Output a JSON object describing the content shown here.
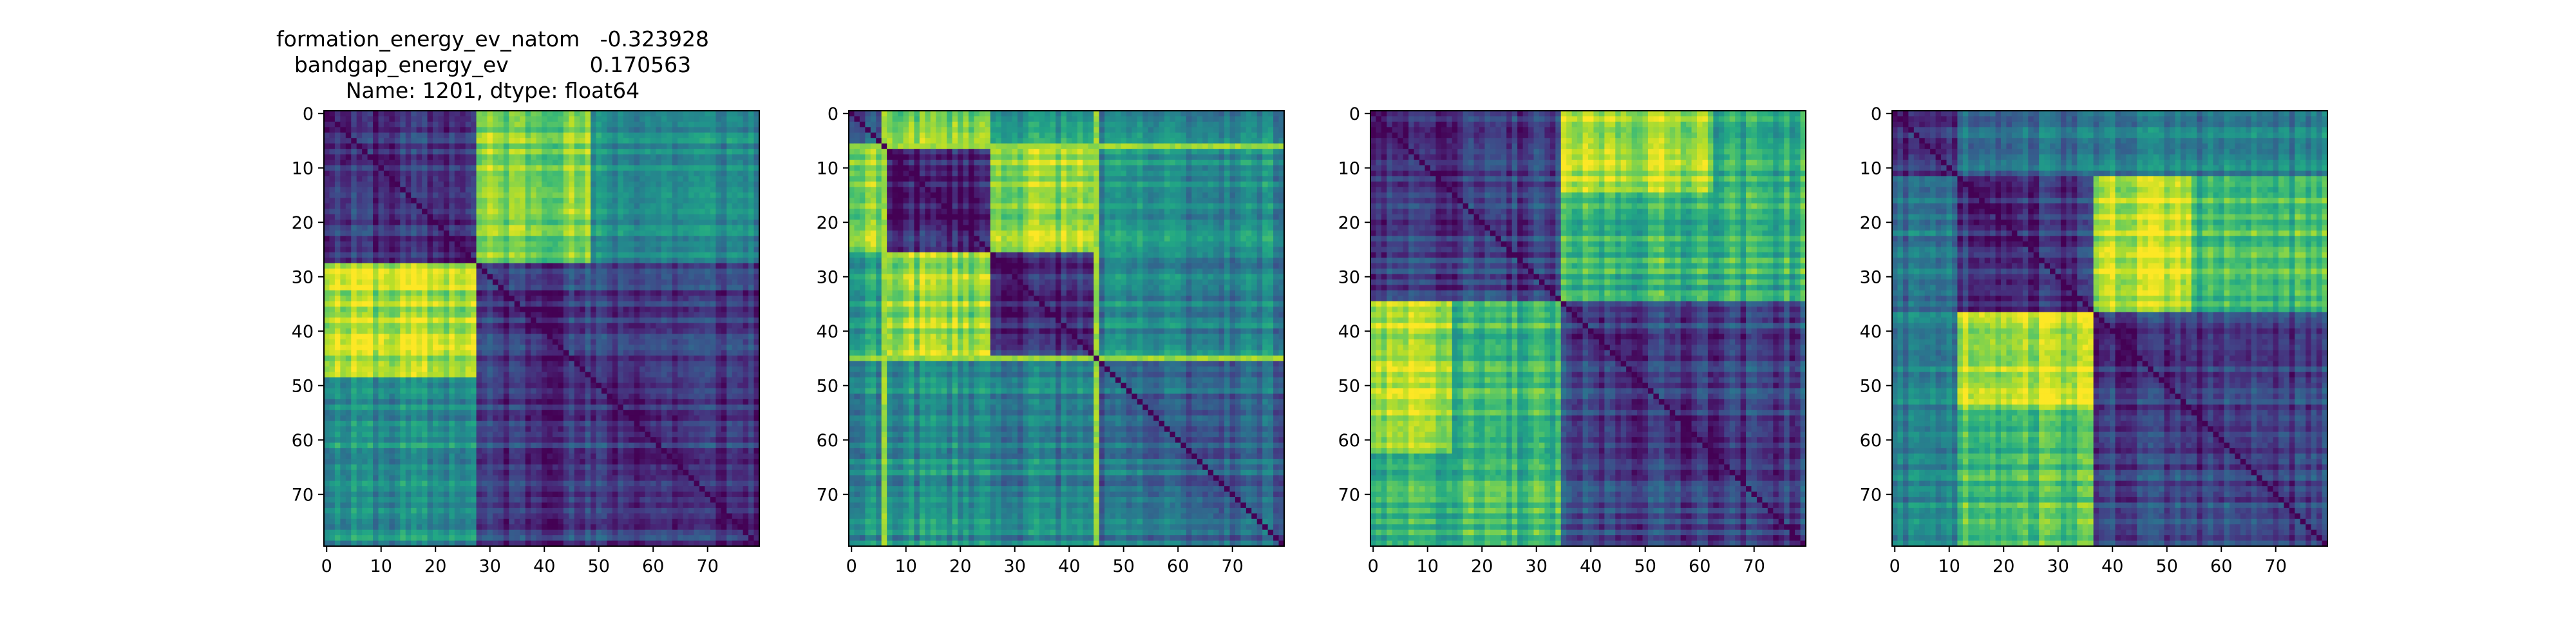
{
  "figure": {
    "title_lines": [
      "formation_energy_ev_natom   -0.323928",
      "bandgap_energy_ev            0.170563",
      "Name: 1201, dtype: float64"
    ]
  },
  "chart_data": [
    {
      "type": "heatmap",
      "colormap": "viridis",
      "size": 80,
      "xlim": [
        0,
        79
      ],
      "ylim": [
        0,
        79
      ],
      "y_inverted": true,
      "xticks": [
        0,
        10,
        20,
        30,
        40,
        50,
        60,
        70
      ],
      "yticks": [
        0,
        10,
        20,
        30,
        40,
        50,
        60,
        70
      ],
      "groups": [
        [
          0,
          28
        ],
        [
          28,
          80
        ]
      ],
      "block_values": [
        [
          0.18,
          0.5
        ],
        [
          0.5,
          0.18
        ]
      ],
      "hot_regions": [
        {
          "rows": [
            28,
            49
          ],
          "cols": [
            0,
            28
          ],
          "value": 0.88
        },
        {
          "rows": [
            0,
            28
          ],
          "cols": [
            28,
            49
          ],
          "value": 0.82
        }
      ],
      "seed": 11
    },
    {
      "type": "heatmap",
      "colormap": "viridis",
      "size": 80,
      "xlim": [
        0,
        79
      ],
      "ylim": [
        0,
        79
      ],
      "y_inverted": true,
      "xticks": [
        0,
        10,
        20,
        30,
        40,
        50,
        60,
        70
      ],
      "yticks": [
        0,
        10,
        20,
        30,
        40,
        50,
        60,
        70
      ],
      "groups": [
        [
          0,
          6
        ],
        [
          6,
          26
        ],
        [
          26,
          45
        ],
        [
          45,
          80
        ]
      ],
      "block_values": [
        [
          0.3,
          0.8,
          0.55,
          0.45
        ],
        [
          0.8,
          0.12,
          0.85,
          0.5
        ],
        [
          0.55,
          0.85,
          0.15,
          0.45
        ],
        [
          0.45,
          0.5,
          0.45,
          0.35
        ]
      ],
      "stripe_rows": [
        6,
        45
      ],
      "stripe_cols": [
        6,
        45
      ],
      "stripe_value": 0.9,
      "seed": 23
    },
    {
      "type": "heatmap",
      "colormap": "viridis",
      "size": 80,
      "xlim": [
        0,
        79
      ],
      "ylim": [
        0,
        79
      ],
      "y_inverted": true,
      "xticks": [
        0,
        10,
        20,
        30,
        40,
        50,
        60,
        70
      ],
      "yticks": [
        0,
        10,
        20,
        30,
        40,
        50,
        60,
        70
      ],
      "groups": [
        [
          0,
          35
        ],
        [
          35,
          80
        ]
      ],
      "block_values": [
        [
          0.2,
          0.65
        ],
        [
          0.65,
          0.2
        ]
      ],
      "hot_regions": [
        {
          "rows": [
            0,
            15
          ],
          "cols": [
            35,
            63
          ],
          "value": 0.9
        },
        {
          "rows": [
            35,
            63
          ],
          "cols": [
            0,
            15
          ],
          "value": 0.9
        }
      ],
      "seed": 37
    },
    {
      "type": "heatmap",
      "colormap": "viridis",
      "size": 80,
      "xlim": [
        0,
        79
      ],
      "ylim": [
        0,
        79
      ],
      "y_inverted": true,
      "xticks": [
        0,
        10,
        20,
        30,
        40,
        50,
        60,
        70
      ],
      "yticks": [
        0,
        10,
        20,
        30,
        40,
        50,
        60,
        70
      ],
      "groups": [
        [
          0,
          12
        ],
        [
          12,
          37
        ],
        [
          37,
          80
        ]
      ],
      "block_values": [
        [
          0.2,
          0.4,
          0.45
        ],
        [
          0.4,
          0.18,
          0.7
        ],
        [
          0.45,
          0.7,
          0.2
        ]
      ],
      "hot_regions": [
        {
          "rows": [
            12,
            37
          ],
          "cols": [
            37,
            55
          ],
          "value": 0.92
        },
        {
          "rows": [
            37,
            55
          ],
          "cols": [
            12,
            37
          ],
          "value": 0.92
        }
      ],
      "seed": 53
    }
  ]
}
